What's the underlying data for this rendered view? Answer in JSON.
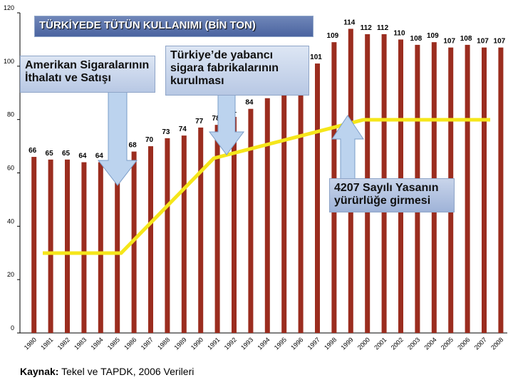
{
  "chart_data": {
    "type": "bar",
    "title": "TÜRKİYEDE TÜTÜN KULLANIMI (BİN TON)",
    "categories": [
      "1980",
      "1981",
      "1982",
      "1983",
      "1984",
      "1985",
      "1986",
      "1987",
      "1988",
      "1989",
      "1990",
      "1991",
      "1992",
      "1993",
      "1994",
      "1995",
      "1996",
      "1997",
      "1998",
      "1999",
      "2000",
      "2001",
      "2002",
      "2003",
      "2004",
      "2005",
      "2006",
      "2007",
      "2008"
    ],
    "values": [
      66,
      65,
      65,
      64,
      64,
      65,
      68,
      70,
      73,
      74,
      77,
      78,
      81,
      84,
      88,
      93,
      97,
      101,
      109,
      114,
      112,
      112,
      110,
      108,
      109,
      107,
      108,
      107,
      107
    ],
    "color": "#9b2d1f",
    "ylim": [
      0,
      120
    ],
    "yticks": [
      0,
      20,
      40,
      60,
      80,
      100,
      120
    ],
    "annotations": [
      "Amerikan Sigaralarının İthalatı ve Satışı",
      "Türkiye’de yabancı sigara fabrikalarının kurulması",
      "4207 Sayılı Yasanın yürürlüğe girmesi"
    ],
    "source_label": "Kaynak:",
    "source": "Tekel ve TAPDK, 2006 Verileri"
  }
}
